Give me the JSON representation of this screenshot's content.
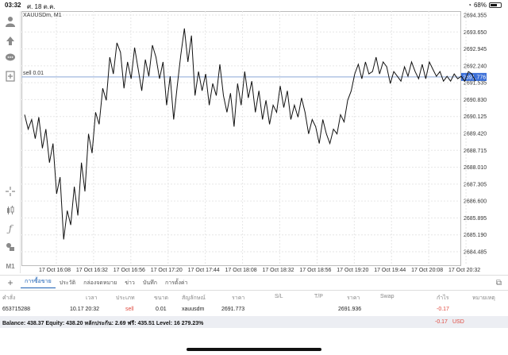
{
  "status": {
    "time": "03:32",
    "date": "ศ. 18 ต.ค.",
    "battery": "68%",
    "battery_level": 0.68
  },
  "chart": {
    "symbol_label": "XAUUSDm, M1",
    "sell_line_label": "sell 0.01",
    "current_price_label": "2691.776",
    "colors": {
      "line": "#111111",
      "grid": "#e6e6e6",
      "sell_line": "#8aa6d6",
      "price_tag": "#3b6fd8"
    }
  },
  "chart_data": {
    "type": "line",
    "y_ticks": [
      "2694.355",
      "2693.650",
      "2692.945",
      "2692.240",
      "2691.535",
      "2690.830",
      "2690.125",
      "2689.420",
      "2688.715",
      "2688.010",
      "2687.305",
      "2686.600",
      "2685.895",
      "2685.190",
      "2684.485"
    ],
    "x_ticks": [
      "17 Oct 16:08",
      "17 Oct 16:32",
      "17 Oct 16:56",
      "17 Oct 17:20",
      "17 Oct 17:44",
      "17 Oct 18:08",
      "17 Oct 18:32",
      "17 Oct 18:56",
      "17 Oct 19:20",
      "17 Oct 19:44",
      "17 Oct 20:08",
      "17 Oct 20:32"
    ],
    "ylim": [
      2684.0,
      2694.5
    ],
    "series": [
      {
        "values": [
          2690.2,
          2689.6,
          2690.0,
          2689.2,
          2690.1,
          2688.8,
          2689.6,
          2688.2,
          2689.0,
          2686.9,
          2687.6,
          2685.0,
          2686.2,
          2685.6,
          2687.2,
          2686.0,
          2688.2,
          2687.0,
          2689.4,
          2688.6,
          2690.3,
          2689.8,
          2691.3,
          2690.8,
          2692.6,
          2691.9,
          2693.2,
          2692.8,
          2691.3,
          2692.4,
          2691.7,
          2693.0,
          2692.1,
          2691.2,
          2692.5,
          2691.8,
          2693.1,
          2692.6,
          2691.7,
          2692.4,
          2690.6,
          2691.8,
          2690.0,
          2691.4,
          2692.7,
          2693.8,
          2692.4,
          2693.5,
          2691.0,
          2692.0,
          2691.2,
          2691.9,
          2690.6,
          2691.5,
          2691.0,
          2692.3,
          2691.0,
          2690.3,
          2691.1,
          2689.7,
          2691.5,
          2690.6,
          2692.0,
          2690.9,
          2691.6,
          2690.3,
          2691.2,
          2690.0,
          2690.8,
          2689.8,
          2690.6,
          2690.3,
          2691.4,
          2690.5,
          2691.2,
          2690.0,
          2690.6,
          2690.1,
          2690.9,
          2690.3,
          2689.4,
          2690.0,
          2689.7,
          2689.0,
          2690.0,
          2689.4,
          2689.0,
          2689.6,
          2689.4,
          2690.2,
          2689.9,
          2690.8,
          2691.2,
          2691.9,
          2692.3,
          2691.7,
          2692.4,
          2691.9,
          2692.0,
          2692.6,
          2691.9,
          2692.4,
          2692.2,
          2691.5,
          2692.0,
          2691.8,
          2691.6,
          2692.2,
          2691.8,
          2692.4,
          2692.0,
          2691.7,
          2692.3,
          2691.7,
          2692.4,
          2692.1,
          2691.8,
          2692.0,
          2691.6,
          2691.8,
          2691.6,
          2691.9,
          2691.7,
          2691.8,
          2691.6,
          2692.0,
          2691.9,
          2691.6
        ]
      }
    ]
  },
  "tabs": [
    "การซื้อขาย",
    "ประวัติ",
    "กล่องจดหมาย",
    "ข่าว",
    "บันทึก",
    "การตั้งค่า"
  ],
  "table": {
    "headers": [
      "คำสั่ง",
      "เวลา",
      "ประเภท",
      "ขนาด",
      "สัญลักษณ์",
      "ราคา",
      "S/L",
      "T/P",
      "ราคา",
      "Swap",
      "กำไร",
      "หมายเหตุ"
    ],
    "row": [
      "653715288",
      "10.17 20:32",
      "sell",
      "0.01",
      "xauusdm",
      "2691.773",
      "",
      "",
      "2691.936",
      "",
      "-0.17",
      ""
    ]
  },
  "balance": {
    "text": "Balance: 438.37 Equity: 438.20 หลักประกัน: 2.69 ฟรี: 435.51 Level: 16 279.23%",
    "profit": "-0.17",
    "currency": "USD"
  },
  "toolbar_icons": [
    "person-icon",
    "add-symbol-icon",
    "chat-icon",
    "new-chart-icon",
    "crosshair-icon",
    "candles-icon",
    "indicator-icon",
    "objects-icon",
    "timeframe-icon"
  ],
  "timeframe_label": "M1"
}
